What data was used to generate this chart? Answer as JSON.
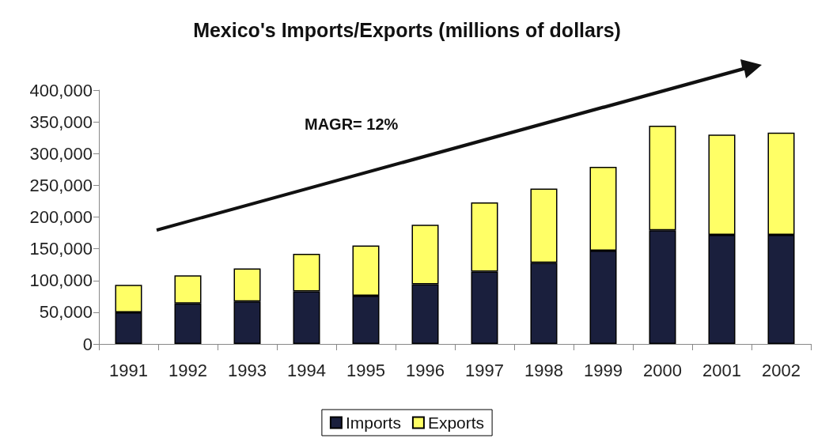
{
  "chart_data": {
    "type": "bar",
    "title": "Mexico's Imports/Exports (millions of dollars)",
    "categories": [
      "1991",
      "1992",
      "1993",
      "1994",
      "1995",
      "1996",
      "1997",
      "1998",
      "1999",
      "2000",
      "2001",
      "2002"
    ],
    "stacked": true,
    "series": [
      {
        "name": "Imports",
        "color": "#1a1f3d",
        "values": [
          50000,
          64000,
          67000,
          83000,
          76000,
          94000,
          114000,
          128000,
          147000,
          179000,
          172000,
          172000
        ]
      },
      {
        "name": "Exports",
        "color": "#ffff66",
        "values": [
          43000,
          44000,
          52000,
          59000,
          79000,
          94000,
          109000,
          117000,
          132000,
          165000,
          158000,
          161000
        ]
      }
    ],
    "ylim": [
      0,
      400000
    ],
    "yticks": [
      0,
      {
        "value": 50000,
        "label": "50,000"
      },
      {
        "value": 100000,
        "label": "100,000"
      },
      {
        "value": 150000,
        "label": "150,000"
      },
      {
        "value": 200000,
        "label": "200,000"
      },
      {
        "value": 250000,
        "label": "250,000"
      },
      {
        "value": 300000,
        "label": "300,000"
      },
      {
        "value": 350000,
        "label": "350,000"
      },
      {
        "value": 400000,
        "label": "400,000"
      }
    ],
    "grid": false,
    "legend": "bottom",
    "annotations": [
      "MAGR= 12%"
    ]
  }
}
